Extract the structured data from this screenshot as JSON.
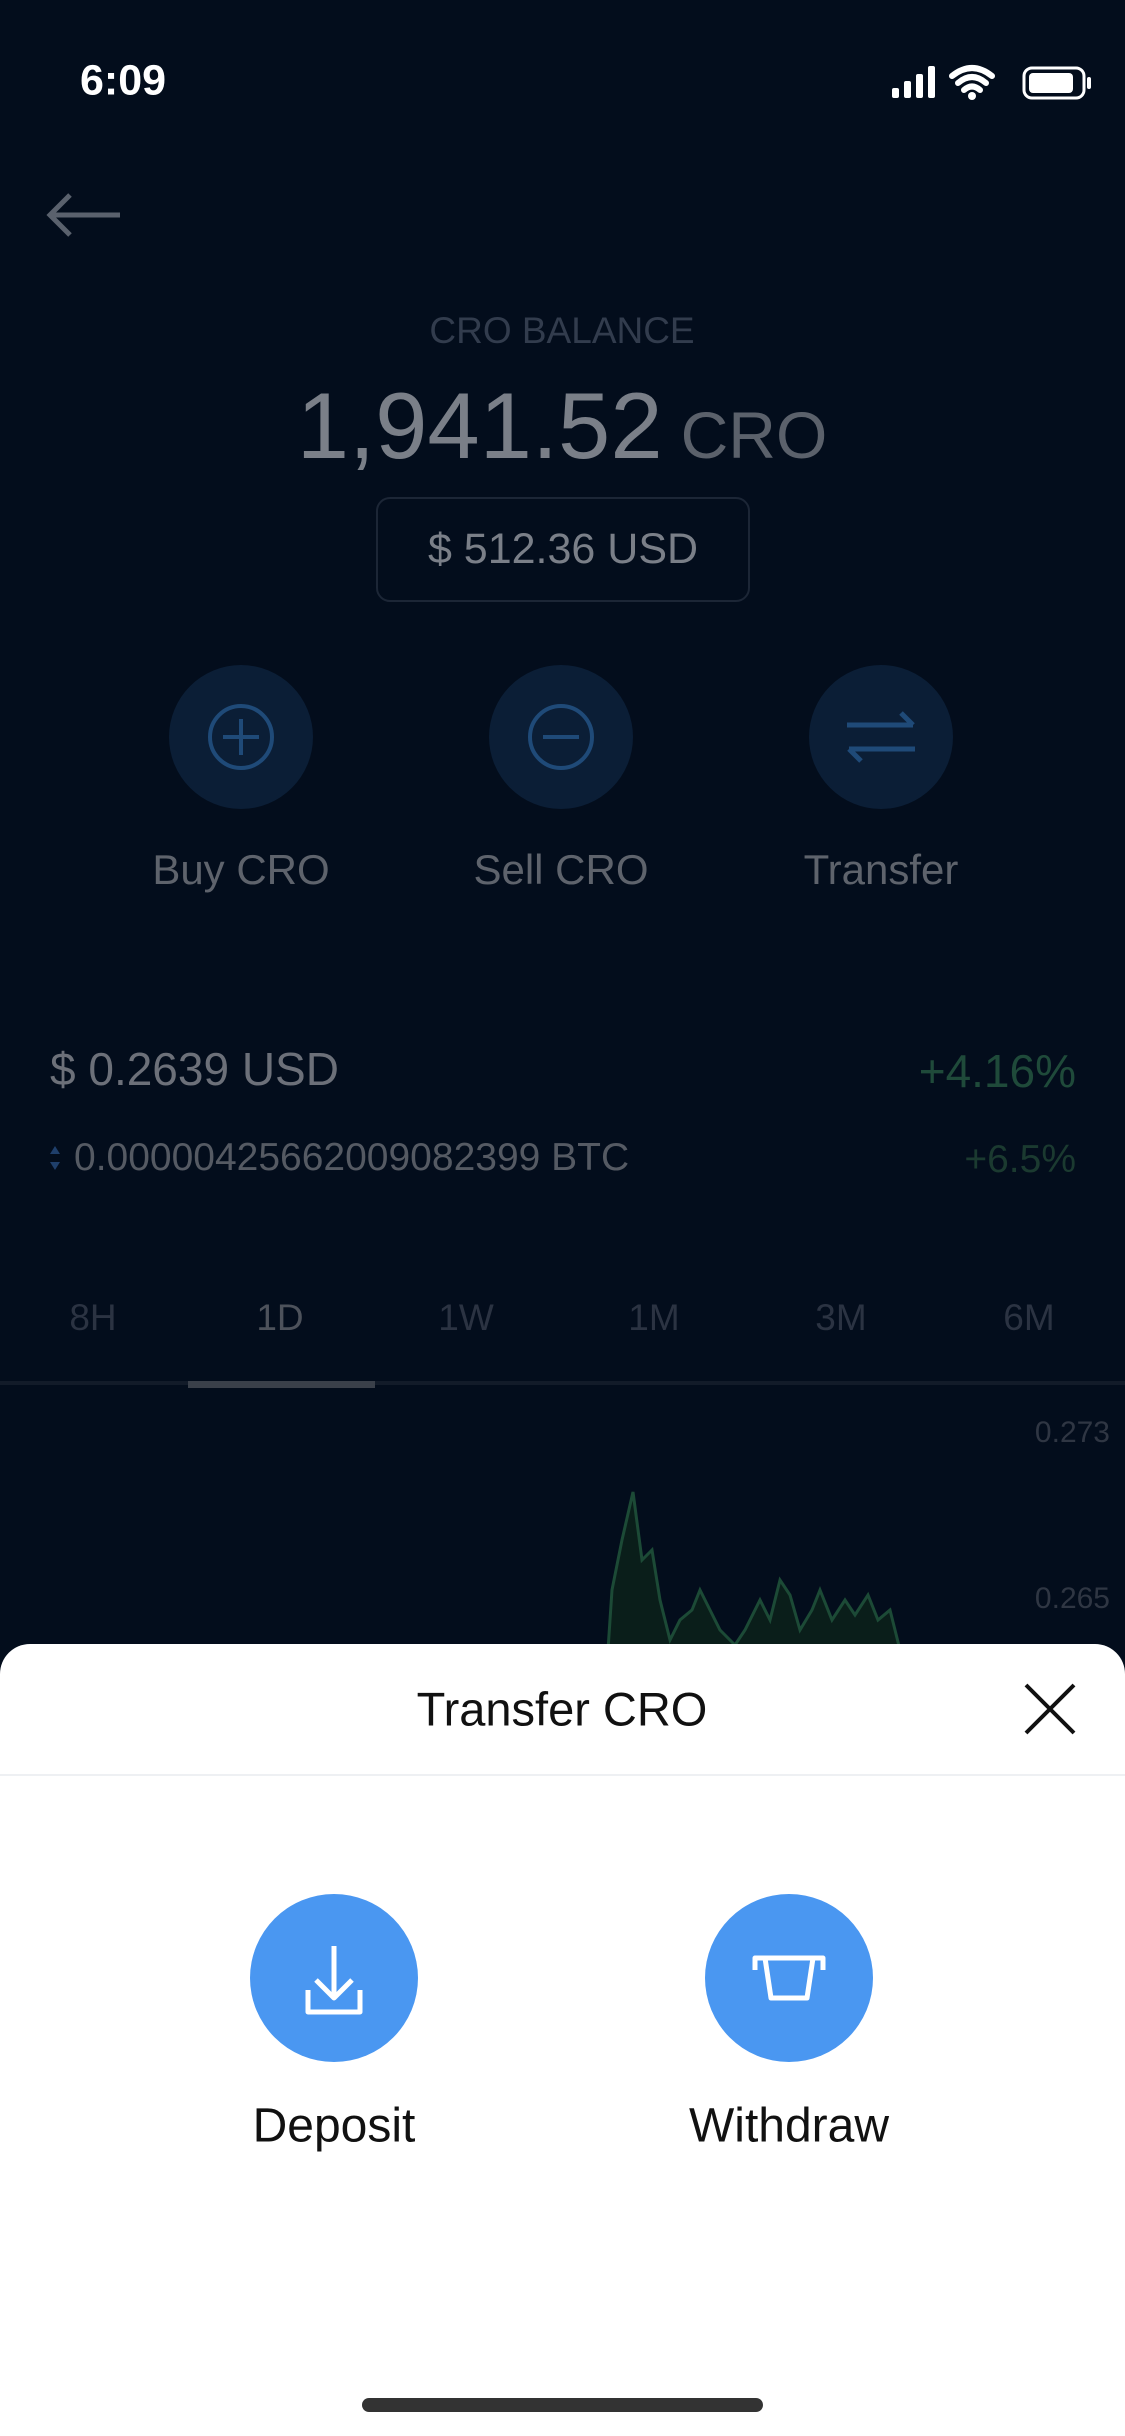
{
  "status_bar": {
    "time": "6:09"
  },
  "balance": {
    "label": "CRO BALANCE",
    "amount": "1,941.52",
    "unit": "CRO",
    "fiat": "$ 512.36 USD"
  },
  "actions": [
    {
      "label": "Buy CRO"
    },
    {
      "label": "Sell CRO"
    },
    {
      "label": "Transfer"
    }
  ],
  "price": {
    "usd": "$ 0.2639 USD",
    "usd_change": "+4.16%",
    "btc": "0.00000425662009082399 BTC",
    "btc_change": "+6.5%"
  },
  "ranges": [
    "8H",
    "1D",
    "1W",
    "1M",
    "3M",
    "6M"
  ],
  "chart_labels": [
    "0.273",
    "0.265"
  ],
  "sheet": {
    "title": "Transfer CRO",
    "options": [
      {
        "label": "Deposit"
      },
      {
        "label": "Withdraw"
      }
    ]
  }
}
